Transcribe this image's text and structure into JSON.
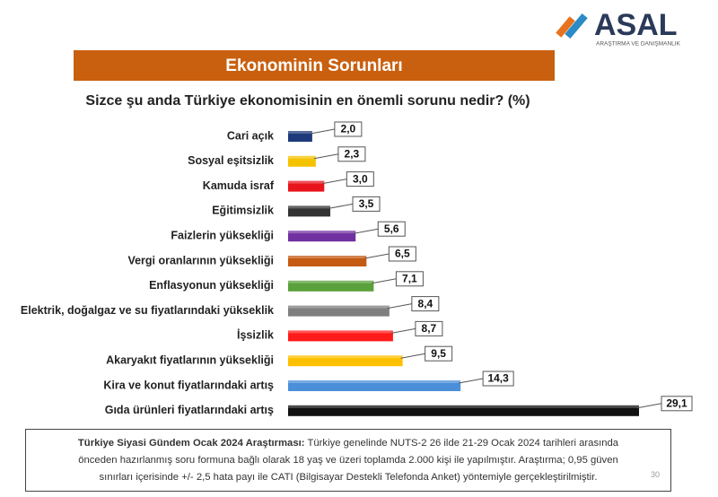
{
  "logo": {
    "name": "ASAL",
    "tagline": "ARAŞTIRMA VE DANIŞMANLIK"
  },
  "chart_data": {
    "type": "bar",
    "orientation": "horizontal",
    "title": "Ekonominin Sorunları",
    "subtitle": "Sizce şu anda Türkiye ekonomisinin en önemli sorunu nedir? (%)",
    "categories": [
      "Cari açık",
      "Sosyal eşitsizlik",
      "Kamuda israf",
      "Eğitimsizlik",
      "Faizlerin yüksekliği",
      "Vergi oranlarının yüksekliği",
      "Enflasyonun yüksekliği",
      "Elektrik, doğalgaz ve su fiyatlarındaki yükseklik",
      "İşsizlik",
      "Akaryakıt fiyatlarının yüksekliği",
      "Kira ve konut fiyatlarındaki artış",
      "Gıda ürünleri fiyatlarındaki artış"
    ],
    "values": [
      2.0,
      2.3,
      3.0,
      3.5,
      5.6,
      6.5,
      7.1,
      8.4,
      8.7,
      9.5,
      14.3,
      29.1
    ],
    "value_labels": [
      "2,0",
      "2,3",
      "3,0",
      "3,5",
      "5,6",
      "6,5",
      "7,1",
      "8,4",
      "8,7",
      "9,5",
      "14,3",
      "29,1"
    ],
    "colors": [
      "#1f3a7a",
      "#f5c200",
      "#e8141c",
      "#333333",
      "#7030a0",
      "#c55a11",
      "#5aa03c",
      "#7f7f7f",
      "#ff1a1a",
      "#ffc000",
      "#4a8fd8",
      "#111111"
    ]
  },
  "footnote": {
    "bold": "Türkiye Siyasi Gündem Ocak 2024 Araştırması:",
    "text": "Türkiye genelinde NUTS-2 26 ilde 21-29 Ocak 2024 tarihleri arasında önceden hazırlanmış soru formuna bağlı olarak 18 yaş ve üzeri toplamda 2.000 kişi ile yapılmıştır. Araştırma; 0,95 güven sınırları içerisinde +/- 2,5 hata payı ile CATI (Bilgisayar Destekli Telefonda Anket) yöntemiyle gerçekleştirilmiştir.",
    "page": "30"
  }
}
